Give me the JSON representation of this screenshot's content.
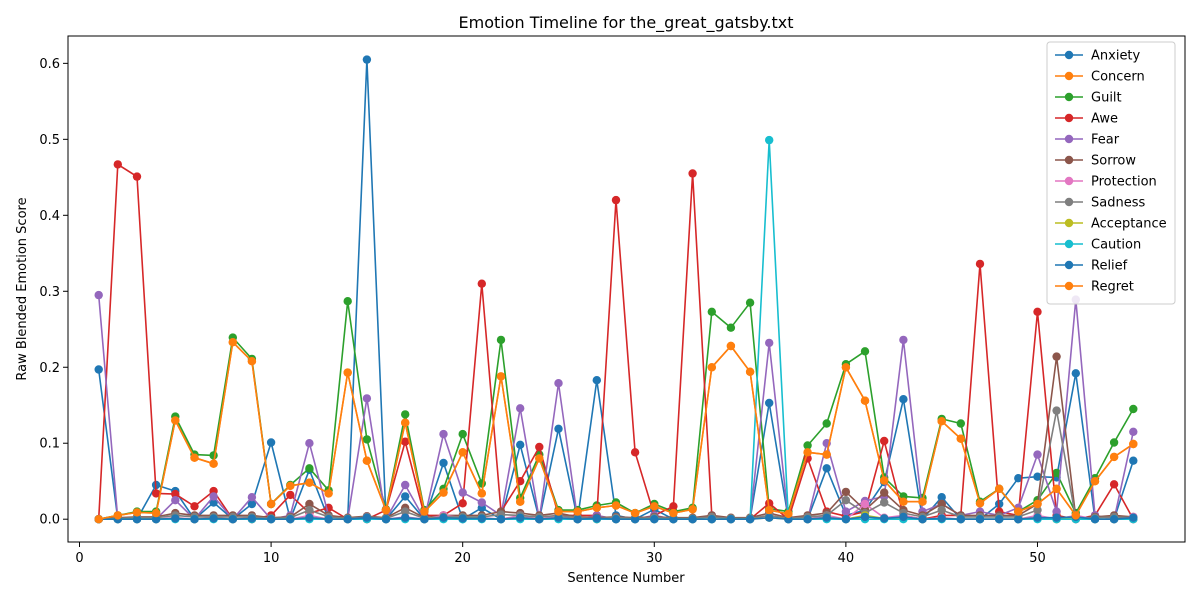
{
  "chart_data": {
    "type": "line",
    "title": "Emotion Timeline for the_great_gatsby.txt",
    "xlabel": "Sentence Number",
    "ylabel": "Raw Blended Emotion Score",
    "xlim": [
      -0.6,
      57.7
    ],
    "ylim": [
      -0.03,
      0.636
    ],
    "xticks": [
      0,
      10,
      20,
      30,
      40,
      50
    ],
    "yticks": [
      0.0,
      0.1,
      0.2,
      0.3,
      0.4,
      0.5,
      0.6
    ],
    "ytick_labels": [
      "0.0",
      "0.1",
      "0.2",
      "0.3",
      "0.4",
      "0.5",
      "0.6"
    ],
    "grid": false,
    "legend_position": "top-right",
    "x": [
      1,
      2,
      3,
      4,
      5,
      6,
      7,
      8,
      9,
      10,
      11,
      12,
      13,
      14,
      15,
      16,
      17,
      18,
      19,
      20,
      21,
      22,
      23,
      24,
      25,
      26,
      27,
      28,
      29,
      30,
      31,
      32,
      33,
      34,
      35,
      36,
      37,
      38,
      39,
      40,
      41,
      42,
      43,
      44,
      45,
      46,
      47,
      48,
      49,
      50,
      51,
      52,
      53,
      54,
      55
    ],
    "series": [
      {
        "name": "Anxiety",
        "color": "#1f77b4",
        "values": [
          0.197,
          0,
          0,
          0.045,
          0.037,
          0,
          0.022,
          0,
          0.02,
          0.101,
          0,
          0.065,
          0,
          0,
          0.605,
          0,
          0.03,
          0,
          0.074,
          0,
          0.015,
          0,
          0.098,
          0,
          0.119,
          0,
          0.183,
          0.005,
          0,
          0.013,
          0,
          0,
          0,
          0,
          0,
          0.153,
          0,
          0,
          0.067,
          0.005,
          0.012,
          0.049,
          0.158,
          0,
          0.029,
          0,
          0,
          0.02,
          0.054,
          0.056,
          0.055,
          0.192,
          0,
          0,
          0.077
        ]
      },
      {
        "name": "Concern",
        "color": "#ff7f0e",
        "values": [
          0,
          0.005,
          0.009,
          0.008,
          0.13,
          0.081,
          0.073,
          0.233,
          0.208,
          0.02,
          0.044,
          0.048,
          0.034,
          0.193,
          0.077,
          0.012,
          0.127,
          0.01,
          0.035,
          0.088,
          0.034,
          0.188,
          0.023,
          0.08,
          0.01,
          0.01,
          0.015,
          0.018,
          0.008,
          0.017,
          0.008,
          0.013,
          0.2,
          0.228,
          0.194,
          0.012,
          0.007,
          0.088,
          0.085,
          0.2,
          0.156,
          0.051,
          0.023,
          0.023,
          0.129,
          0.106,
          0.021,
          0.04,
          0.01,
          0.02,
          0.04,
          0.005,
          0.05,
          0.082,
          0.099
        ]
      },
      {
        "name": "Guilt",
        "color": "#2ca02c",
        "values": [
          0,
          0.005,
          0.01,
          0.01,
          0.135,
          0.085,
          0.084,
          0.239,
          0.211,
          0.02,
          0.045,
          0.067,
          0.038,
          0.287,
          0.105,
          0.013,
          0.138,
          0.012,
          0.04,
          0.112,
          0.047,
          0.236,
          0.028,
          0.085,
          0.012,
          0.012,
          0.018,
          0.022,
          0.008,
          0.02,
          0.01,
          0.015,
          0.273,
          0.252,
          0.285,
          0.014,
          0.01,
          0.097,
          0.126,
          0.204,
          0.221,
          0.055,
          0.03,
          0.028,
          0.132,
          0.126,
          0.023,
          0.04,
          0.01,
          0.025,
          0.061,
          0.008,
          0.054,
          0.101,
          0.145
        ]
      },
      {
        "name": "Awe",
        "color": "#d62728",
        "values": [
          0,
          0.467,
          0.451,
          0.034,
          0.033,
          0.017,
          0.037,
          0,
          0,
          0.005,
          0.032,
          0.008,
          0.015,
          0,
          0,
          0.012,
          0.102,
          0.005,
          0.005,
          0.021,
          0.31,
          0.01,
          0.05,
          0.095,
          0.005,
          0.005,
          0.005,
          0.42,
          0.088,
          0.005,
          0.017,
          0.455,
          0.005,
          0,
          0,
          0.021,
          0,
          0.08,
          0.01,
          0.004,
          0.01,
          0.103,
          0.005,
          0,
          0.005,
          0.005,
          0.336,
          0.01,
          0.005,
          0.273,
          0.005,
          0,
          0.005,
          0.046,
          0
        ]
      },
      {
        "name": "Fear",
        "color": "#9467bd",
        "values": [
          0.295,
          0,
          0,
          0,
          0.025,
          0,
          0.03,
          0,
          0.029,
          0,
          0.005,
          0.1,
          0.005,
          0,
          0.159,
          0,
          0.045,
          0,
          0.112,
          0.035,
          0.022,
          0.005,
          0.146,
          0,
          0.179,
          0,
          0.005,
          0,
          0,
          0.005,
          0,
          0,
          0.005,
          0,
          0,
          0.232,
          0,
          0,
          0.1,
          0.01,
          0.024,
          0.03,
          0.236,
          0.01,
          0.02,
          0.005,
          0.01,
          0.005,
          0.015,
          0.085,
          0.01,
          0.289,
          0.005,
          0,
          0.115
        ]
      },
      {
        "name": "Sorrow",
        "color": "#8c564b",
        "values": [
          0,
          0.002,
          0.003,
          0.003,
          0.008,
          0.005,
          0.005,
          0.005,
          0.005,
          0.002,
          0.003,
          0.02,
          0.005,
          0.002,
          0.004,
          0.002,
          0.015,
          0.002,
          0.005,
          0.005,
          0.005,
          0.01,
          0.008,
          0.005,
          0.008,
          0.003,
          0.002,
          0.003,
          0.002,
          0.003,
          0.002,
          0.002,
          0.005,
          0.002,
          0.002,
          0.008,
          0.002,
          0.005,
          0.008,
          0.036,
          0.012,
          0.035,
          0.012,
          0.005,
          0.02,
          0.005,
          0.005,
          0.005,
          0.005,
          0.02,
          0.214,
          0.002,
          0.003,
          0.005,
          0.003
        ]
      },
      {
        "name": "Protection",
        "color": "#e377c2",
        "values": [
          0,
          0,
          0,
          0,
          0.002,
          0,
          0.002,
          0,
          0.002,
          0,
          0,
          0.005,
          0,
          0,
          0.003,
          0,
          0.003,
          0,
          0.005,
          0.002,
          0.002,
          0,
          0.005,
          0,
          0.005,
          0,
          0,
          0,
          0,
          0,
          0,
          0,
          0,
          0,
          0,
          0.005,
          0,
          0,
          0.005,
          0,
          0.02,
          0.002,
          0.005,
          0,
          0.002,
          0,
          0,
          0,
          0,
          0.005,
          0,
          0.005,
          0,
          0,
          0.003
        ]
      },
      {
        "name": "Sadness",
        "color": "#7f7f7f",
        "values": [
          0,
          0.001,
          0.002,
          0.002,
          0.005,
          0.003,
          0.003,
          0.003,
          0.003,
          0.001,
          0.002,
          0.012,
          0.003,
          0.001,
          0.003,
          0.001,
          0.01,
          0.001,
          0.003,
          0.003,
          0.003,
          0.006,
          0.005,
          0.003,
          0.005,
          0.002,
          0.001,
          0.002,
          0.001,
          0.002,
          0.001,
          0.001,
          0.003,
          0.001,
          0.001,
          0.005,
          0.001,
          0.003,
          0.005,
          0.025,
          0.008,
          0.022,
          0.008,
          0.003,
          0.012,
          0.003,
          0.003,
          0.003,
          0.003,
          0.012,
          0.143,
          0.001,
          0.002,
          0.003,
          0.002
        ]
      },
      {
        "name": "Acceptance",
        "color": "#bcbd22",
        "values": [
          0,
          0,
          0,
          0,
          0.001,
          0,
          0.001,
          0,
          0.001,
          0,
          0,
          0.002,
          0,
          0,
          0.001,
          0,
          0.001,
          0,
          0.002,
          0.001,
          0.001,
          0,
          0.002,
          0,
          0.002,
          0,
          0,
          0,
          0,
          0,
          0,
          0,
          0,
          0,
          0,
          0.002,
          0,
          0,
          0.002,
          0,
          0.005,
          0.001,
          0.002,
          0,
          0.001,
          0,
          0,
          0,
          0,
          0.002,
          0,
          0.002,
          0,
          0,
          0.001
        ]
      },
      {
        "name": "Caution",
        "color": "#17becf",
        "values": [
          0,
          0,
          0,
          0,
          0,
          0,
          0,
          0,
          0,
          0,
          0,
          0,
          0,
          0,
          0,
          0,
          0,
          0,
          0,
          0,
          0,
          0,
          0,
          0,
          0,
          0,
          0,
          0,
          0,
          0,
          0,
          0,
          0,
          0,
          0,
          0.499,
          0,
          0,
          0,
          0,
          0,
          0,
          0,
          0,
          0,
          0,
          0,
          0,
          0,
          0,
          0,
          0,
          0,
          0,
          0
        ]
      },
      {
        "name": "Relief",
        "color": "#1f77b4",
        "values": [
          0,
          0,
          0,
          0,
          0.001,
          0,
          0.001,
          0,
          0.001,
          0,
          0,
          0.002,
          0,
          0,
          0.002,
          0,
          0.002,
          0,
          0.002,
          0.001,
          0.001,
          0,
          0.002,
          0,
          0.002,
          0,
          0.001,
          0,
          0,
          0,
          0,
          0,
          0,
          0,
          0,
          0.002,
          0,
          0,
          0.002,
          0,
          0.003,
          0.001,
          0.003,
          0,
          0.001,
          0,
          0,
          0,
          0,
          0.002,
          0.002,
          0.003,
          0,
          0,
          0.002
        ]
      },
      {
        "name": "Regret",
        "color": "#ff7f0e",
        "values": [
          0,
          0.005,
          0.009,
          0.008,
          0.13,
          0.081,
          0.073,
          0.233,
          0.208,
          0.02,
          0.044,
          0.048,
          0.034,
          0.193,
          0.077,
          0.012,
          0.127,
          0.01,
          0.035,
          0.088,
          0.034,
          0.188,
          0.023,
          0.08,
          0.01,
          0.01,
          0.015,
          0.018,
          0.008,
          0.017,
          0.008,
          0.013,
          0.2,
          0.228,
          0.194,
          0.012,
          0.007,
          0.088,
          0.085,
          0.2,
          0.156,
          0.051,
          0.023,
          0.023,
          0.129,
          0.106,
          0.021,
          0.04,
          0.01,
          0.02,
          0.04,
          0.005,
          0.05,
          0.082,
          0.099
        ]
      }
    ]
  }
}
